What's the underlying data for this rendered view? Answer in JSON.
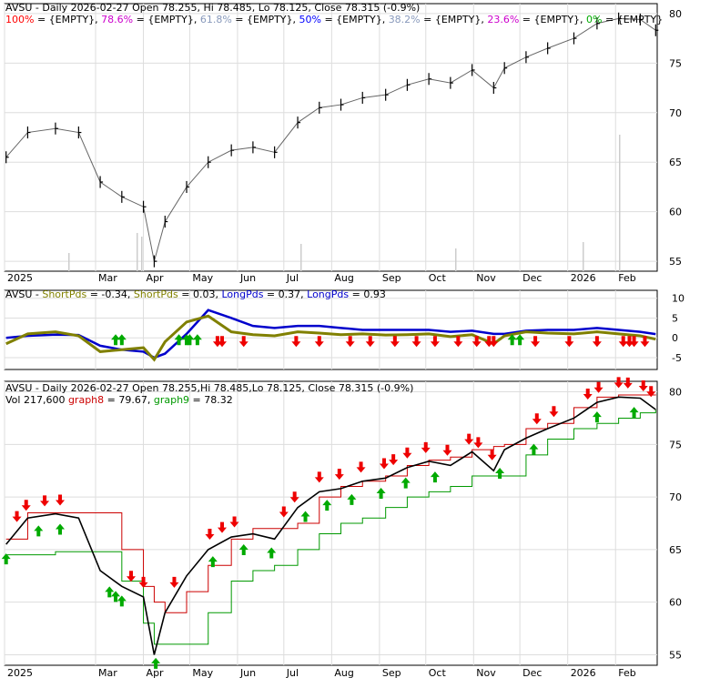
{
  "colors": {
    "price": "#000000",
    "pct100": "#ff0000",
    "pct786": "#cc00cc",
    "pct618": "#8899bb",
    "pct50": "#0000ff",
    "pct382": "#8899bb",
    "pct236": "#cc00cc",
    "pct0": "#00aa00",
    "short": "#808000",
    "long": "#0000cc",
    "up": "#00aa00",
    "down": "#ee0000",
    "graph8": "#cc0000",
    "graph9": "#009900",
    "grid": "#dddddd",
    "volume": "#cccccc"
  },
  "panel1": {
    "title": "AVSU - Daily 2026-02-27 Open 78.255, Hi 78.485, Lo 78.125, Close 78.315 (-0.9%)",
    "fib": [
      {
        "pct": "100%",
        "val": " = {EMPTY},",
        "color": "pct100"
      },
      {
        "pct": "78.6%",
        "val": " = {EMPTY},",
        "color": "pct786"
      },
      {
        "pct": "61.8%",
        "val": " = {EMPTY},",
        "color": "pct618"
      },
      {
        "pct": "50%",
        "val": " = {EMPTY},",
        "color": "pct50"
      },
      {
        "pct": "38.2%",
        "val": " = {EMPTY},",
        "color": "pct382"
      },
      {
        "pct": "23.6%",
        "val": " = {EMPTY},",
        "color": "pct236"
      },
      {
        "pct": "0%",
        "val": " = {EMPTY}",
        "color": "pct0"
      }
    ],
    "y_ticks": [
      "80",
      "75",
      "70",
      "65",
      "60",
      "55"
    ]
  },
  "x_labels": [
    "2025",
    "Mar",
    "Apr",
    "May",
    "Jun",
    "Jul",
    "Aug",
    "Sep",
    "Oct",
    "Nov",
    "Dec",
    "2026",
    "Feb"
  ],
  "panel2": {
    "prefix": "AVSU - ",
    "parts": [
      {
        "t": "ShortPds",
        "c": "short"
      },
      {
        "t": " = -0.34, ",
        "c": "price"
      },
      {
        "t": "ShortPds",
        "c": "short"
      },
      {
        "t": " = 0.03, ",
        "c": "price"
      },
      {
        "t": "LongPds",
        "c": "long"
      },
      {
        "t": " = 0.37, ",
        "c": "price"
      },
      {
        "t": "LongPds",
        "c": "long"
      },
      {
        "t": " = 0.93",
        "c": "price"
      }
    ],
    "y_ticks": [
      "10",
      "5",
      "0",
      "-5"
    ]
  },
  "panel3": {
    "title": "AVSU - Daily 2026-02-27 Open 78.255,Hi 78.485,Lo 78.125, Close 78.315 (-0.9%)",
    "vol": "Vol 217,600 ",
    "g8_label": "graph8",
    "g8_val": " = 79.67, ",
    "g9_label": "graph9",
    "g9_val": " = 78.32",
    "y_ticks": [
      "80",
      "75",
      "70",
      "65",
      "60",
      "55"
    ]
  },
  "chart_data": {
    "type": "line",
    "ticker": "AVSU",
    "x_dates": [
      "2025-01-02",
      "2025-01-16",
      "2025-02-03",
      "2025-02-18",
      "2025-03-04",
      "2025-03-18",
      "2025-04-01",
      "2025-04-08",
      "2025-04-15",
      "2025-04-29",
      "2025-05-13",
      "2025-05-28",
      "2025-06-11",
      "2025-06-25",
      "2025-07-10",
      "2025-07-24",
      "2025-08-07",
      "2025-08-21",
      "2025-09-05",
      "2025-09-19",
      "2025-10-03",
      "2025-10-17",
      "2025-10-31",
      "2025-11-14",
      "2025-11-21",
      "2025-12-05",
      "2025-12-19",
      "2026-01-05",
      "2026-01-20",
      "2026-02-03",
      "2026-02-17",
      "2026-02-27"
    ],
    "close": [
      65.5,
      68.0,
      68.4,
      68.0,
      63.0,
      61.5,
      60.5,
      55.0,
      59.0,
      62.5,
      65.0,
      66.2,
      66.5,
      66.0,
      69.0,
      70.5,
      70.8,
      71.5,
      71.8,
      72.8,
      73.4,
      73.0,
      74.3,
      72.5,
      74.5,
      75.6,
      76.5,
      77.5,
      79.0,
      79.5,
      79.4,
      78.315
    ],
    "ylim_price": [
      54,
      81
    ],
    "short_osc": [
      -1.5,
      1.0,
      1.5,
      0.5,
      -3.5,
      -3.0,
      -2.5,
      -5.5,
      -1.0,
      4.0,
      5.5,
      1.5,
      0.8,
      0.5,
      1.5,
      1.2,
      0.8,
      1.0,
      0.7,
      0.8,
      1.0,
      0.3,
      0.8,
      -1.5,
      0.5,
      1.5,
      1.2,
      1.0,
      1.5,
      1.0,
      0.5,
      -0.34
    ],
    "long_osc": [
      0.0,
      0.5,
      0.8,
      0.7,
      -2.0,
      -3.0,
      -3.5,
      -5.0,
      -4.0,
      1.0,
      7.0,
      5.0,
      3.0,
      2.5,
      3.0,
      3.0,
      2.5,
      2.0,
      2.0,
      2.0,
      2.0,
      1.5,
      1.8,
      1.0,
      1.0,
      1.8,
      2.0,
      2.0,
      2.5,
      2.0,
      1.5,
      0.93
    ],
    "ylim_osc": [
      -8,
      12
    ],
    "graph8": [
      66.0,
      68.5,
      68.5,
      68.5,
      68.5,
      65.0,
      61.5,
      60.0,
      59.0,
      61.0,
      63.5,
      66.0,
      67.0,
      67.0,
      67.5,
      70.0,
      71.0,
      71.5,
      72.0,
      73.0,
      73.5,
      73.8,
      74.5,
      74.8,
      75.0,
      76.5,
      77.0,
      78.5,
      79.5,
      79.7,
      79.7,
      79.67
    ],
    "graph9": [
      64.5,
      64.5,
      64.8,
      64.8,
      64.8,
      62.0,
      58.0,
      56.0,
      56.0,
      56.0,
      59.0,
      62.0,
      63.0,
      63.5,
      65.0,
      66.5,
      67.5,
      68.0,
      69.0,
      70.0,
      70.5,
      71.0,
      72.0,
      72.0,
      72.0,
      74.0,
      75.5,
      76.5,
      77.0,
      77.5,
      78.0,
      78.32
    ],
    "buy_signal_dates": [
      "2025-01-02",
      "2025-01-23",
      "2025-02-06",
      "2025-03-10",
      "2025-03-14",
      "2025-03-18",
      "2025-04-09",
      "2025-05-16",
      "2025-06-05",
      "2025-06-23",
      "2025-07-15",
      "2025-07-29",
      "2025-08-14",
      "2025-09-02",
      "2025-09-18",
      "2025-10-07",
      "2025-11-18",
      "2025-12-10",
      "2026-01-20",
      "2026-02-13"
    ],
    "sell_signal_dates": [
      "2025-01-09",
      "2025-01-15",
      "2025-01-27",
      "2025-02-06",
      "2025-03-24",
      "2025-04-01",
      "2025-04-21",
      "2025-05-14",
      "2025-05-22",
      "2025-05-30",
      "2025-07-01",
      "2025-07-08",
      "2025-07-24",
      "2025-08-06",
      "2025-08-20",
      "2025-09-04",
      "2025-09-10",
      "2025-09-19",
      "2025-10-01",
      "2025-10-15",
      "2025-10-29",
      "2025-11-04",
      "2025-11-13",
      "2025-12-12",
      "2025-12-23",
      "2026-01-14",
      "2026-01-21",
      "2026-02-03",
      "2026-02-09",
      "2026-02-19",
      "2026-02-24"
    ],
    "osc_up_dates": [
      "2025-03-14",
      "2025-03-18",
      "2025-04-24",
      "2025-04-29",
      "2025-05-01",
      "2025-05-06",
      "2025-11-26",
      "2025-12-01"
    ],
    "osc_down_dates": [
      "2025-05-19",
      "2025-05-22",
      "2025-06-05",
      "2025-07-09",
      "2025-07-24",
      "2025-08-13",
      "2025-08-26",
      "2025-09-11",
      "2025-09-25",
      "2025-10-07",
      "2025-10-22",
      "2025-11-03",
      "2025-11-11",
      "2025-11-14",
      "2025-12-11",
      "2026-01-02",
      "2026-01-20",
      "2026-02-06",
      "2026-02-10",
      "2026-02-13",
      "2026-02-20"
    ]
  }
}
